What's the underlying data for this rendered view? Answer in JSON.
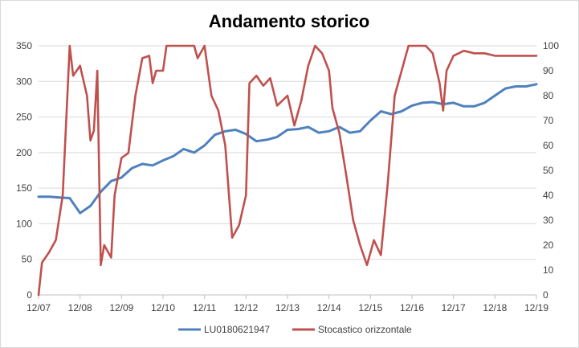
{
  "chart_data": {
    "type": "line",
    "title": "Andamento storico",
    "xlabel": "",
    "ylabel": "",
    "x_categories": [
      "12/07",
      "12/08",
      "12/09",
      "12/10",
      "12/11",
      "12/12",
      "12/13",
      "12/14",
      "12/15",
      "12/16",
      "12/17",
      "12/18",
      "12/19"
    ],
    "y_left": {
      "range": [
        0,
        350
      ],
      "ticks": [
        0,
        50,
        100,
        150,
        200,
        250,
        300,
        350
      ]
    },
    "y_right": {
      "range": [
        0,
        100
      ],
      "ticks": [
        0,
        10,
        20,
        30,
        40,
        50,
        60,
        70,
        80,
        90,
        100
      ]
    },
    "grid": "horizontal",
    "legend_position": "bottom",
    "series": [
      {
        "name": "LU0180621947",
        "axis": "left",
        "color": "#4F81BD",
        "points": [
          [
            "12/07",
            138
          ],
          [
            "03/08",
            138
          ],
          [
            "06/08",
            137
          ],
          [
            "09/08",
            136
          ],
          [
            "12/08",
            115
          ],
          [
            "03/09",
            125
          ],
          [
            "06/09",
            145
          ],
          [
            "09/09",
            160
          ],
          [
            "12/09",
            165
          ],
          [
            "03/10",
            178
          ],
          [
            "06/10",
            184
          ],
          [
            "09/10",
            182
          ],
          [
            "12/10",
            189
          ],
          [
            "03/11",
            195
          ],
          [
            "06/11",
            205
          ],
          [
            "09/11",
            200
          ],
          [
            "12/11",
            210
          ],
          [
            "03/12",
            225
          ],
          [
            "06/12",
            230
          ],
          [
            "09/12",
            232
          ],
          [
            "12/12",
            226
          ],
          [
            "03/13",
            216
          ],
          [
            "06/13",
            218
          ],
          [
            "09/13",
            222
          ],
          [
            "12/13",
            232
          ],
          [
            "03/14",
            233
          ],
          [
            "06/14",
            236
          ],
          [
            "09/14",
            228
          ],
          [
            "12/14",
            230
          ],
          [
            "03/15",
            236
          ],
          [
            "06/15",
            228
          ],
          [
            "09/15",
            230
          ],
          [
            "12/15",
            245
          ],
          [
            "03/16",
            258
          ],
          [
            "06/16",
            254
          ],
          [
            "09/16",
            258
          ],
          [
            "12/16",
            266
          ],
          [
            "03/17",
            270
          ],
          [
            "06/17",
            271
          ],
          [
            "09/17",
            268
          ],
          [
            "12/17",
            270
          ],
          [
            "03/18",
            265
          ],
          [
            "06/18",
            265
          ],
          [
            "09/18",
            270
          ],
          [
            "12/18",
            280
          ],
          [
            "03/19",
            290
          ],
          [
            "06/19",
            293
          ],
          [
            "09/19",
            293
          ],
          [
            "12/19",
            296
          ]
        ]
      },
      {
        "name": "Stocastico orizzontale",
        "axis": "right",
        "color": "#C0504D",
        "points": [
          [
            "12/07",
            0
          ],
          [
            "01/08",
            13
          ],
          [
            "03/08",
            17
          ],
          [
            "05/08",
            22
          ],
          [
            "07/08",
            40
          ],
          [
            "09/08",
            100
          ],
          [
            "10/08",
            88
          ],
          [
            "12/08",
            92
          ],
          [
            "02/09",
            80
          ],
          [
            "03/09",
            62
          ],
          [
            "04/09",
            66
          ],
          [
            "05/09",
            90
          ],
          [
            "06/09",
            12
          ],
          [
            "07/09",
            20
          ],
          [
            "09/09",
            15
          ],
          [
            "10/09",
            40
          ],
          [
            "12/09",
            55
          ],
          [
            "02/10",
            57
          ],
          [
            "04/10",
            80
          ],
          [
            "06/10",
            95
          ],
          [
            "08/10",
            96
          ],
          [
            "09/10",
            85
          ],
          [
            "10/10",
            90
          ],
          [
            "12/10",
            90
          ],
          [
            "01/11",
            100
          ],
          [
            "06/11",
            100
          ],
          [
            "09/11",
            100
          ],
          [
            "10/11",
            95
          ],
          [
            "12/11",
            100
          ],
          [
            "02/12",
            80
          ],
          [
            "04/12",
            74
          ],
          [
            "06/12",
            60
          ],
          [
            "08/12",
            23
          ],
          [
            "10/12",
            28
          ],
          [
            "12/12",
            40
          ],
          [
            "01/13",
            85
          ],
          [
            "03/13",
            88
          ],
          [
            "05/13",
            84
          ],
          [
            "07/13",
            87
          ],
          [
            "09/13",
            76
          ],
          [
            "12/13",
            80
          ],
          [
            "02/14",
            68
          ],
          [
            "04/14",
            78
          ],
          [
            "06/14",
            92
          ],
          [
            "08/14",
            100
          ],
          [
            "10/14",
            97
          ],
          [
            "12/14",
            90
          ],
          [
            "01/15",
            75
          ],
          [
            "03/15",
            65
          ],
          [
            "05/15",
            48
          ],
          [
            "07/15",
            30
          ],
          [
            "09/15",
            20
          ],
          [
            "11/15",
            12
          ],
          [
            "01/16",
            22
          ],
          [
            "03/16",
            16
          ],
          [
            "05/16",
            45
          ],
          [
            "07/16",
            80
          ],
          [
            "09/16",
            90
          ],
          [
            "11/16",
            100
          ],
          [
            "12/16",
            100
          ],
          [
            "04/17",
            100
          ],
          [
            "06/17",
            97
          ],
          [
            "08/17",
            85
          ],
          [
            "09/17",
            74
          ],
          [
            "10/17",
            90
          ],
          [
            "12/17",
            96
          ],
          [
            "03/18",
            98
          ],
          [
            "06/18",
            97
          ],
          [
            "09/18",
            97
          ],
          [
            "12/18",
            96
          ],
          [
            "12/19",
            96
          ]
        ]
      }
    ]
  }
}
